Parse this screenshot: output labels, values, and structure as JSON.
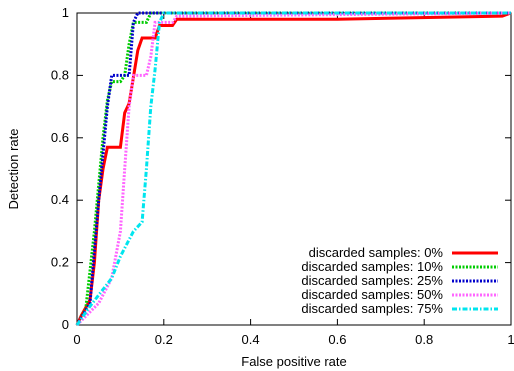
{
  "chart_data": {
    "type": "line",
    "xlabel": "False positive rate",
    "ylabel": "Detection rate",
    "xlim": [
      0,
      1
    ],
    "ylim": [
      0,
      1
    ],
    "xticks": [
      "0",
      "0.2",
      "0.4",
      "0.6",
      "0.8",
      "1"
    ],
    "yticks": [
      "0",
      "0.2",
      "0.4",
      "0.6",
      "0.8",
      "1"
    ],
    "grid": false,
    "legend_position": "bottom-right",
    "series": [
      {
        "name": "discarded samples: 0%",
        "color": "#ff0000",
        "style": "solid",
        "points": [
          [
            0,
            0
          ],
          [
            0.01,
            0.03
          ],
          [
            0.03,
            0.08
          ],
          [
            0.04,
            0.2
          ],
          [
            0.05,
            0.4
          ],
          [
            0.06,
            0.5
          ],
          [
            0.07,
            0.57
          ],
          [
            0.1,
            0.57
          ],
          [
            0.11,
            0.68
          ],
          [
            0.12,
            0.71
          ],
          [
            0.14,
            0.88
          ],
          [
            0.15,
            0.92
          ],
          [
            0.18,
            0.92
          ],
          [
            0.19,
            0.96
          ],
          [
            0.22,
            0.96
          ],
          [
            0.23,
            0.98
          ],
          [
            0.6,
            0.98
          ],
          [
            0.98,
            0.99
          ],
          [
            1,
            1
          ]
        ]
      },
      {
        "name": "discarded samples: 10%",
        "color": "#00cc00",
        "style": "dotted",
        "points": [
          [
            0,
            0
          ],
          [
            0.02,
            0.05
          ],
          [
            0.04,
            0.3
          ],
          [
            0.06,
            0.6
          ],
          [
            0.07,
            0.72
          ],
          [
            0.08,
            0.78
          ],
          [
            0.1,
            0.78
          ],
          [
            0.11,
            0.8
          ],
          [
            0.12,
            0.9
          ],
          [
            0.13,
            0.97
          ],
          [
            0.16,
            0.97
          ],
          [
            0.17,
            1
          ],
          [
            1,
            1
          ]
        ]
      },
      {
        "name": "discarded samples: 25%",
        "color": "#0000cc",
        "style": "dotted",
        "points": [
          [
            0,
            0
          ],
          [
            0.03,
            0.07
          ],
          [
            0.05,
            0.4
          ],
          [
            0.07,
            0.7
          ],
          [
            0.08,
            0.8
          ],
          [
            0.12,
            0.8
          ],
          [
            0.13,
            0.97
          ],
          [
            0.14,
            1
          ],
          [
            1,
            1
          ]
        ]
      },
      {
        "name": "discarded samples: 50%",
        "color": "#ff66ff",
        "style": "dotted",
        "points": [
          [
            0,
            0
          ],
          [
            0.05,
            0.07
          ],
          [
            0.08,
            0.15
          ],
          [
            0.1,
            0.3
          ],
          [
            0.11,
            0.5
          ],
          [
            0.12,
            0.7
          ],
          [
            0.13,
            0.8
          ],
          [
            0.16,
            0.8
          ],
          [
            0.17,
            0.86
          ],
          [
            0.18,
            0.97
          ],
          [
            0.22,
            0.97
          ],
          [
            0.23,
            0.99
          ],
          [
            1,
            1
          ]
        ]
      },
      {
        "name": "discarded samples: 75%",
        "color": "#00e5ee",
        "style": "dash-dot",
        "points": [
          [
            0,
            0
          ],
          [
            0.03,
            0.06
          ],
          [
            0.08,
            0.15
          ],
          [
            0.1,
            0.22
          ],
          [
            0.13,
            0.3
          ],
          [
            0.15,
            0.33
          ],
          [
            0.16,
            0.5
          ],
          [
            0.17,
            0.7
          ],
          [
            0.18,
            0.82
          ],
          [
            0.19,
            0.97
          ],
          [
            0.2,
            1
          ],
          [
            1,
            1
          ]
        ]
      }
    ]
  }
}
